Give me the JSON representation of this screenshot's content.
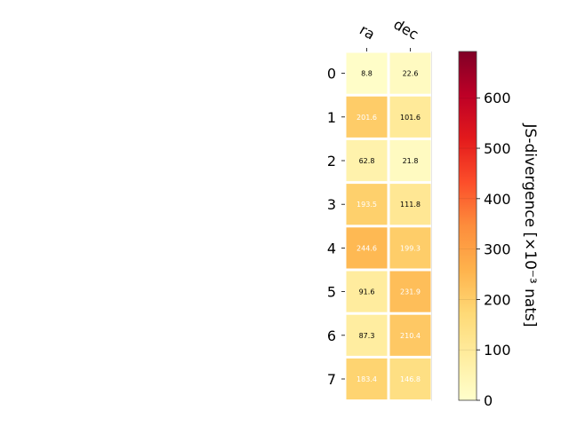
{
  "chart_data": {
    "type": "heatmap",
    "x_categories": [
      "ra",
      "dec"
    ],
    "y_categories": [
      "0",
      "1",
      "2",
      "3",
      "4",
      "5",
      "6",
      "7"
    ],
    "values": [
      [
        8.8,
        22.6
      ],
      [
        201.6,
        101.6
      ],
      [
        62.8,
        21.8
      ],
      [
        193.5,
        111.8
      ],
      [
        244.6,
        199.3
      ],
      [
        91.6,
        231.9
      ],
      [
        87.3,
        210.4
      ],
      [
        183.4,
        146.8
      ]
    ],
    "cell_labels": [
      [
        "8.8",
        "22.6"
      ],
      [
        "201.6",
        "101.6"
      ],
      [
        "62.8",
        "21.8"
      ],
      [
        "193.5",
        "111.8"
      ],
      [
        "244.6",
        "199.3"
      ],
      [
        "91.6",
        "231.9"
      ],
      [
        "87.3",
        "210.4"
      ],
      [
        "183.4",
        "146.8"
      ]
    ],
    "colorbar": {
      "label": "JS-divergence [×10⁻³ nats]",
      "range": [
        0,
        692
      ],
      "ticks": [
        0,
        100,
        200,
        300,
        400,
        500,
        600
      ],
      "tick_labels": [
        "0",
        "100",
        "200",
        "300",
        "400",
        "500",
        "600"
      ],
      "colormap": "YlOrRd"
    }
  }
}
